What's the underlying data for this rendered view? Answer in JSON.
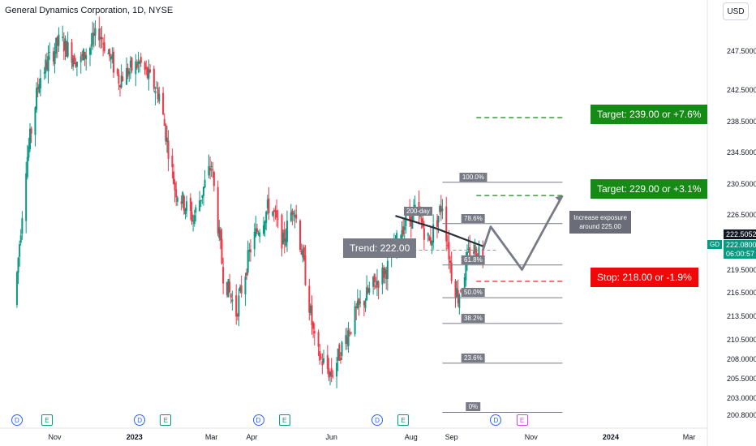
{
  "header": {
    "title": "General Dynamics Corporation, 1D, NYSE",
    "currency": "USD"
  },
  "price_tags": {
    "last": "222.5052",
    "ticker": "GD",
    "gd_price": "222.0800",
    "countdown": "06:00:57"
  },
  "colors": {
    "up": "#089981",
    "down": "#f23645",
    "target": "#158a15",
    "stop": "#f20707",
    "fib": "#787b86"
  },
  "annotations": {
    "target1": "Target: 239.00 or +7.6%",
    "target2": "Target: 229.00 or +3.1%",
    "stop": "Stop: 218.00 or -1.9%",
    "trend": "Trend: 222.00",
    "ma_label": "200-day",
    "note_line1": "Increase exposure",
    "note_line2": "around 225.00"
  },
  "fib_levels": [
    {
      "label": "100.0%",
      "price": 230.7
    },
    {
      "label": "78.6%",
      "price": 225.4
    },
    {
      "label": "61.8%",
      "price": 220.1
    },
    {
      "label": "50.0%",
      "price": 215.9
    },
    {
      "label": "38.2%",
      "price": 212.6
    },
    {
      "label": "23.6%",
      "price": 207.5
    },
    {
      "label": "0%",
      "price": 201.2
    }
  ],
  "events": [
    {
      "type": "D",
      "x_date": "2022-10-03"
    },
    {
      "type": "E",
      "x_date": "2022-10-26"
    },
    {
      "type": "D",
      "x_date": "2023-01-05"
    },
    {
      "type": "E",
      "x_date": "2023-01-25"
    },
    {
      "type": "D",
      "x_date": "2023-04-06"
    },
    {
      "type": "E",
      "x_date": "2023-04-26"
    },
    {
      "type": "D",
      "x_date": "2023-07-06"
    },
    {
      "type": "E",
      "x_date": "2023-07-26"
    },
    {
      "type": "D",
      "x_date": "2023-10-05"
    },
    {
      "type": "E",
      "x_date": "2023-10-25"
    }
  ],
  "chart_data": {
    "type": "candlestick",
    "title": "General Dynamics Corporation, 1D, NYSE",
    "ylim": [
      200,
      252
    ],
    "y_ticks": [
      "247.5000",
      "242.5000",
      "238.5000",
      "234.5000",
      "230.5000",
      "226.5000",
      "219.5000",
      "216.5000",
      "213.5000",
      "210.5000",
      "208.0000",
      "205.5000",
      "203.0000",
      "200.8000"
    ],
    "x_ticks": [
      "Nov",
      "2023",
      "Mar",
      "Apr",
      "Jun",
      "Aug",
      "Sep",
      "Nov",
      "2024",
      "Mar"
    ],
    "price_path": [
      [
        "2022-10-01",
        215
      ],
      [
        "2022-10-10",
        233
      ],
      [
        "2022-10-20",
        244
      ],
      [
        "2022-11-05",
        249
      ],
      [
        "2022-11-20",
        246
      ],
      [
        "2022-12-05",
        250
      ],
      [
        "2022-12-20",
        244
      ],
      [
        "2023-01-05",
        246
      ],
      [
        "2023-01-20",
        242
      ],
      [
        "2023-02-01",
        230
      ],
      [
        "2023-02-15",
        226
      ],
      [
        "2023-03-01",
        233
      ],
      [
        "2023-03-10",
        219
      ],
      [
        "2023-03-20",
        214
      ],
      [
        "2023-04-01",
        223
      ],
      [
        "2023-04-15",
        228
      ],
      [
        "2023-04-25",
        223
      ],
      [
        "2023-05-03",
        228
      ],
      [
        "2023-05-10",
        221
      ],
      [
        "2023-05-20",
        209
      ],
      [
        "2023-06-01",
        206
      ],
      [
        "2023-06-10",
        210
      ],
      [
        "2023-06-20",
        214
      ],
      [
        "2023-07-01",
        217
      ],
      [
        "2023-07-15",
        220
      ],
      [
        "2023-07-25",
        225
      ],
      [
        "2023-08-05",
        227
      ],
      [
        "2023-08-15",
        223
      ],
      [
        "2023-08-25",
        228
      ],
      [
        "2023-09-01",
        219
      ],
      [
        "2023-09-06",
        216
      ],
      [
        "2023-09-15",
        222
      ],
      [
        "2023-09-25",
        222
      ]
    ],
    "moving_average_200": [
      [
        "2023-07-20",
        226.4
      ],
      [
        "2023-08-20",
        224.8
      ],
      [
        "2023-09-25",
        222.5
      ]
    ],
    "projection": [
      [
        "2023-09-25",
        222
      ],
      [
        "2023-10-01",
        225
      ],
      [
        "2023-10-25",
        219.5
      ],
      [
        "2023-11-15",
        226
      ],
      [
        "2023-11-25",
        229
      ]
    ],
    "trend_level": 222.0,
    "targets": [
      239.0,
      229.0
    ],
    "stop": 218.0
  }
}
